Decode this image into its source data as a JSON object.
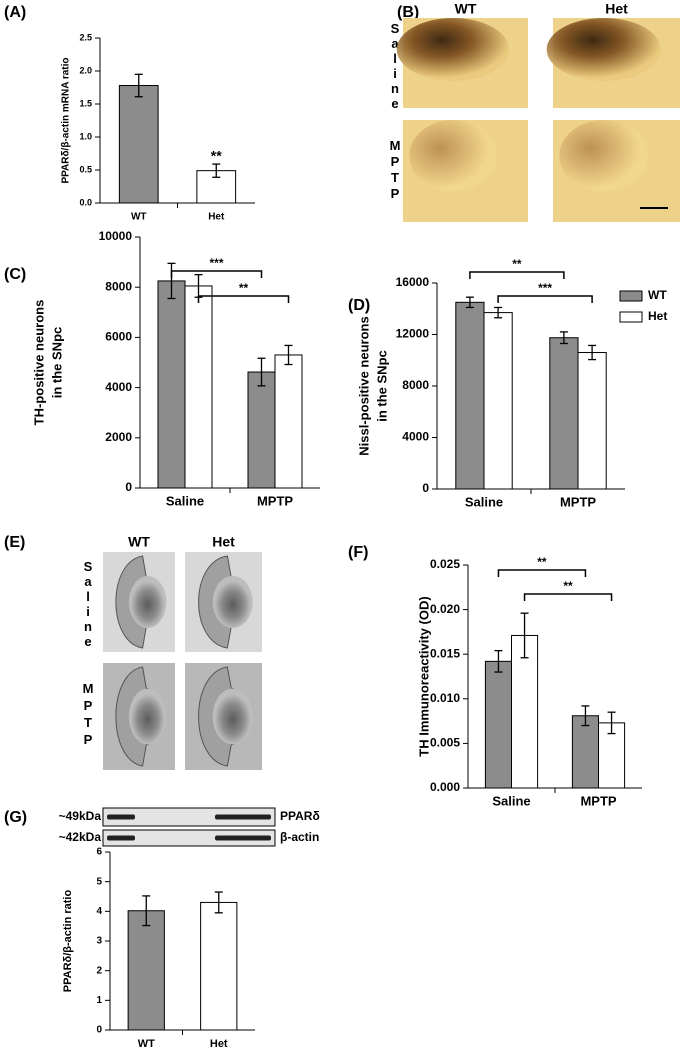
{
  "chart_data": [
    {
      "type": "bar",
      "panel": "(A)",
      "ylabel": [
        "PPARδ/β-actin mRNA ratio"
      ],
      "categories": [
        "WT",
        "Het"
      ],
      "values": [
        1.78,
        0.49
      ],
      "errors": [
        0.17,
        0.1
      ],
      "colors": [
        "#8c8c8c",
        "#ffffff"
      ],
      "ylim": [
        0,
        2.5
      ],
      "yticks": [
        {
          "value": 0,
          "label": "0.0"
        },
        0.5,
        {
          "value": 1,
          "label": "1.0"
        },
        1.5,
        {
          "value": 2,
          "label": "2.0"
        },
        2.5
      ],
      "annotations": [
        "**"
      ]
    },
    {
      "type": "grouped-bar",
      "panel": "(C)",
      "ylabel": [
        "TH-positive neurons",
        "in the SNpc"
      ],
      "categories": [
        "Saline",
        "MPTP"
      ],
      "series": [
        {
          "name": "WT",
          "color": "#8c8c8c",
          "values": [
            8250,
            4620
          ],
          "errors": [
            700,
            550
          ]
        },
        {
          "name": "Het",
          "color": "#ffffff",
          "values": [
            8050,
            5300
          ],
          "errors": [
            450,
            380
          ]
        }
      ],
      "ylim": [
        0,
        10000
      ],
      "yticks": [
        0,
        2000,
        4000,
        6000,
        8000,
        10000
      ],
      "annotations": [
        "***",
        "**"
      ],
      "legend": false
    },
    {
      "type": "grouped-bar",
      "panel": "(D)",
      "ylabel": [
        "Nissl-positive neurons",
        "in the SNpc"
      ],
      "categories": [
        "Saline",
        "MPTP"
      ],
      "series": [
        {
          "name": "WT",
          "color": "#8c8c8c",
          "values": [
            14500,
            11750
          ],
          "errors": [
            400,
            450
          ]
        },
        {
          "name": "Het",
          "color": "#ffffff",
          "values": [
            13700,
            10600
          ],
          "errors": [
            400,
            550
          ]
        }
      ],
      "ylim": [
        0,
        16000
      ],
      "yticks": [
        0,
        4000,
        8000,
        12000,
        16000
      ],
      "annotations": [
        "**",
        "***"
      ],
      "legend": true
    },
    {
      "type": "grouped-bar",
      "panel": "(F)",
      "ylabel": [
        "TH Immunoreactivity (OD)"
      ],
      "categories": [
        "Saline",
        "MPTP"
      ],
      "series": [
        {
          "name": "WT",
          "color": "#8c8c8c",
          "values": [
            0.0142,
            0.0081
          ],
          "errors": [
            0.0012,
            0.0011
          ]
        },
        {
          "name": "Het",
          "color": "#ffffff",
          "values": [
            0.0171,
            0.0073
          ],
          "errors": [
            0.0025,
            0.0012
          ]
        }
      ],
      "ylim": [
        0,
        0.025
      ],
      "yticks": [
        {
          "value": 0,
          "label": "0.000"
        },
        0.005,
        {
          "value": 0.01,
          "label": "0.010"
        },
        0.015,
        {
          "value": 0.02,
          "label": "0.020"
        },
        0.025
      ],
      "annotations": [
        "**",
        "**"
      ],
      "legend": false
    },
    {
      "type": "bar",
      "panel": "(G)",
      "ylabel": [
        "PPARδ/β-actin ratio"
      ],
      "categories": [
        "WT",
        "Het"
      ],
      "values": [
        4.02,
        4.3
      ],
      "errors": [
        0.5,
        0.35
      ],
      "colors": [
        "#8c8c8c",
        "#ffffff"
      ],
      "ylim": [
        0,
        6
      ],
      "yticks": [
        0,
        1,
        2,
        3,
        4,
        5,
        6
      ],
      "annotations": [],
      "blot": [
        {
          "size": "~49kDa",
          "protein": "PPARδ"
        },
        {
          "size": "~42kDa",
          "protein": "β-actin"
        }
      ]
    }
  ],
  "image_panels": [
    {
      "panel": "(B)",
      "columns": [
        "WT",
        "Het"
      ],
      "rows": [
        "Saline",
        "MPTP"
      ]
    },
    {
      "panel": "(E)",
      "columns": [
        "WT",
        "Het"
      ],
      "rows": [
        "Saline",
        "MPTP"
      ]
    }
  ]
}
